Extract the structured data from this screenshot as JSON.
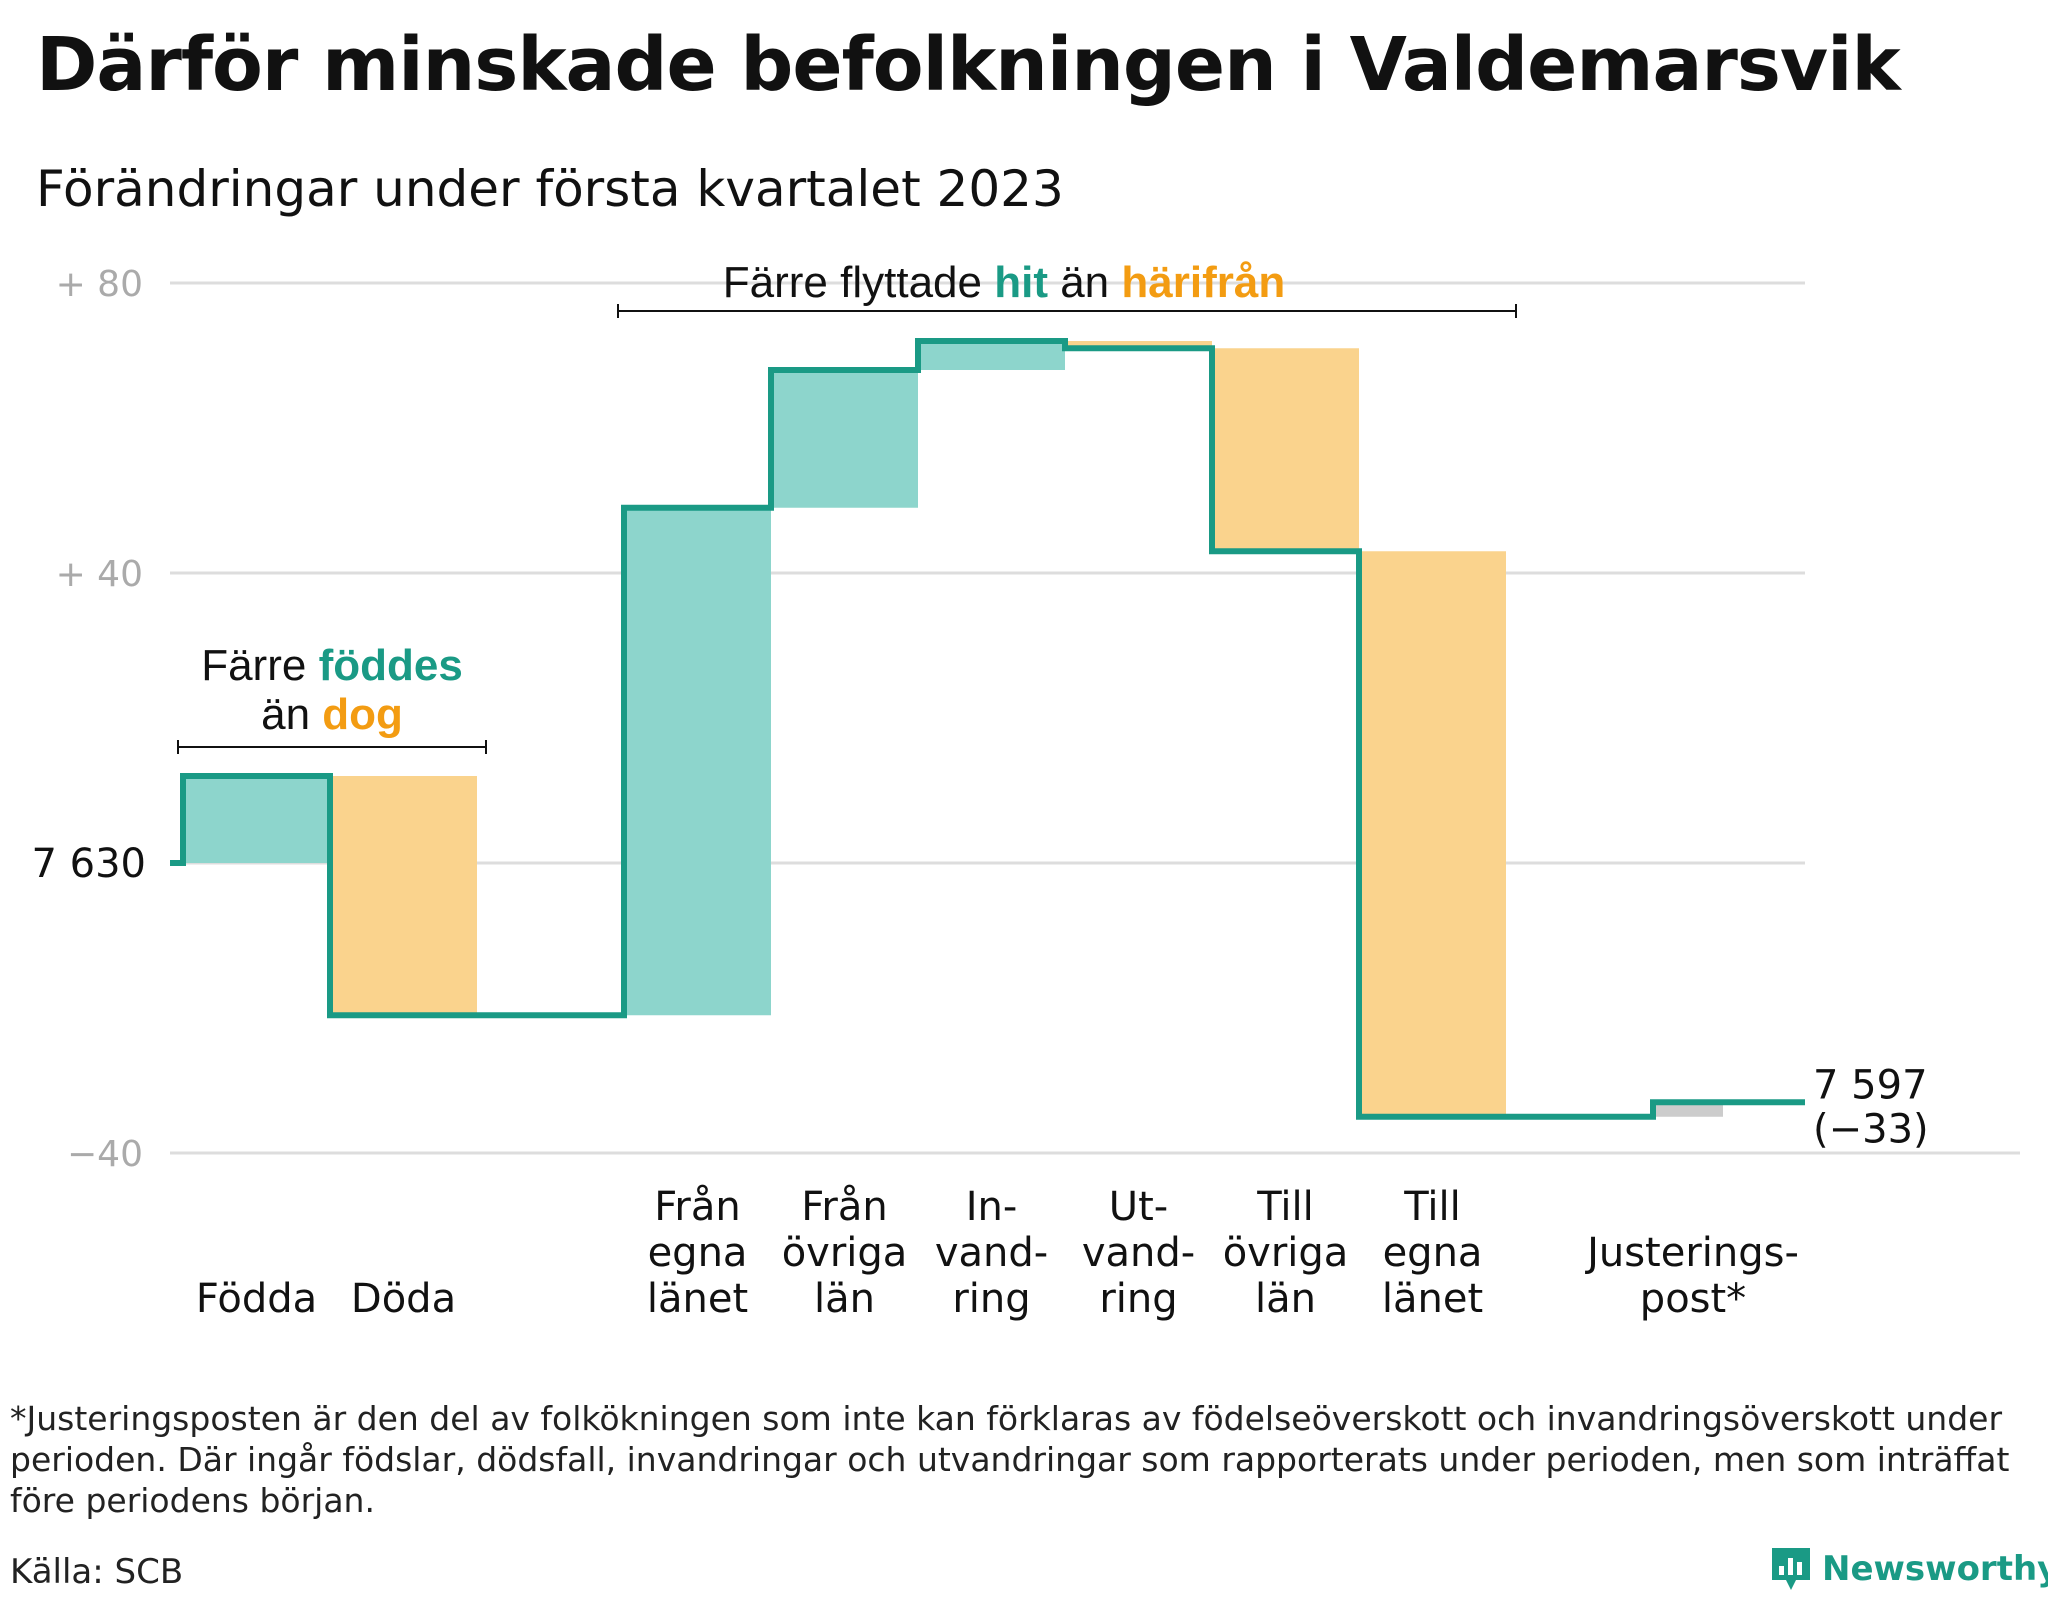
{
  "title": "Därför minskade befolkningen i Valdemarsvik",
  "subtitle": "Förändringar under första kvartalet 2023",
  "footnote": "*Justeringsposten är den del av folkökningen som inte kan förklaras av födelseöverskott och invandringsöverskott under perioden. Där ingår födslar, dödsfall, invandringar och utvandringar som rapporterats under perioden, men som inträffat före periodens början.",
  "source": "Källa: SCB",
  "brand": "Newsworthy",
  "colors": {
    "increase": "#8dd5cc",
    "decrease": "#fad38d",
    "adjustment": "#cccccc",
    "line": "#1a9a85",
    "accent_orange": "#f39c12",
    "grid": "#dddddd",
    "tick": "#aaaaaa"
  },
  "annotations": {
    "births": {
      "line1_a": "Färre ",
      "line1_b": "föddes",
      "line2_a": "än ",
      "line2_b": "dog"
    },
    "migration": {
      "part1": "Färre flyttade ",
      "part2": "hit",
      "part3": " än ",
      "part4": "härifrån"
    }
  },
  "chart_data": {
    "type": "waterfall",
    "start_value": 7630,
    "start_label": "7 630",
    "end_value": 7597,
    "end_label": "7 597",
    "end_change_label": "(−33)",
    "y_ticks": [
      {
        "value": 80,
        "label": "+ 80"
      },
      {
        "value": 40,
        "label": "+ 40"
      },
      {
        "value": -40,
        "label": "−40"
      }
    ],
    "ylim": [
      -40,
      80
    ],
    "steps": [
      {
        "category": "Födda",
        "label_lines": [
          "Födda"
        ],
        "change": 12
      },
      {
        "category": "Döda",
        "label_lines": [
          "Döda"
        ],
        "change": -33
      },
      {
        "category": "Från egna länet",
        "label_lines": [
          "Från",
          "egna",
          "länet"
        ],
        "change": 70
      },
      {
        "category": "Från övriga län",
        "label_lines": [
          "Från",
          "övriga",
          "län"
        ],
        "change": 19
      },
      {
        "category": "Invandring",
        "label_lines": [
          "In-",
          "vand-",
          "ring"
        ],
        "change": 4
      },
      {
        "category": "Utvandring",
        "label_lines": [
          "Ut-",
          "vand-",
          "ring"
        ],
        "change": -1
      },
      {
        "category": "Till övriga län",
        "label_lines": [
          "Till",
          "övriga",
          "län"
        ],
        "change": -28
      },
      {
        "category": "Till egna länet",
        "label_lines": [
          "Till",
          "egna",
          "länet"
        ],
        "change": -78
      },
      {
        "category": "Justeringspost*",
        "label_lines": [
          "Justerings-",
          "post*"
        ],
        "change": 2
      }
    ]
  }
}
